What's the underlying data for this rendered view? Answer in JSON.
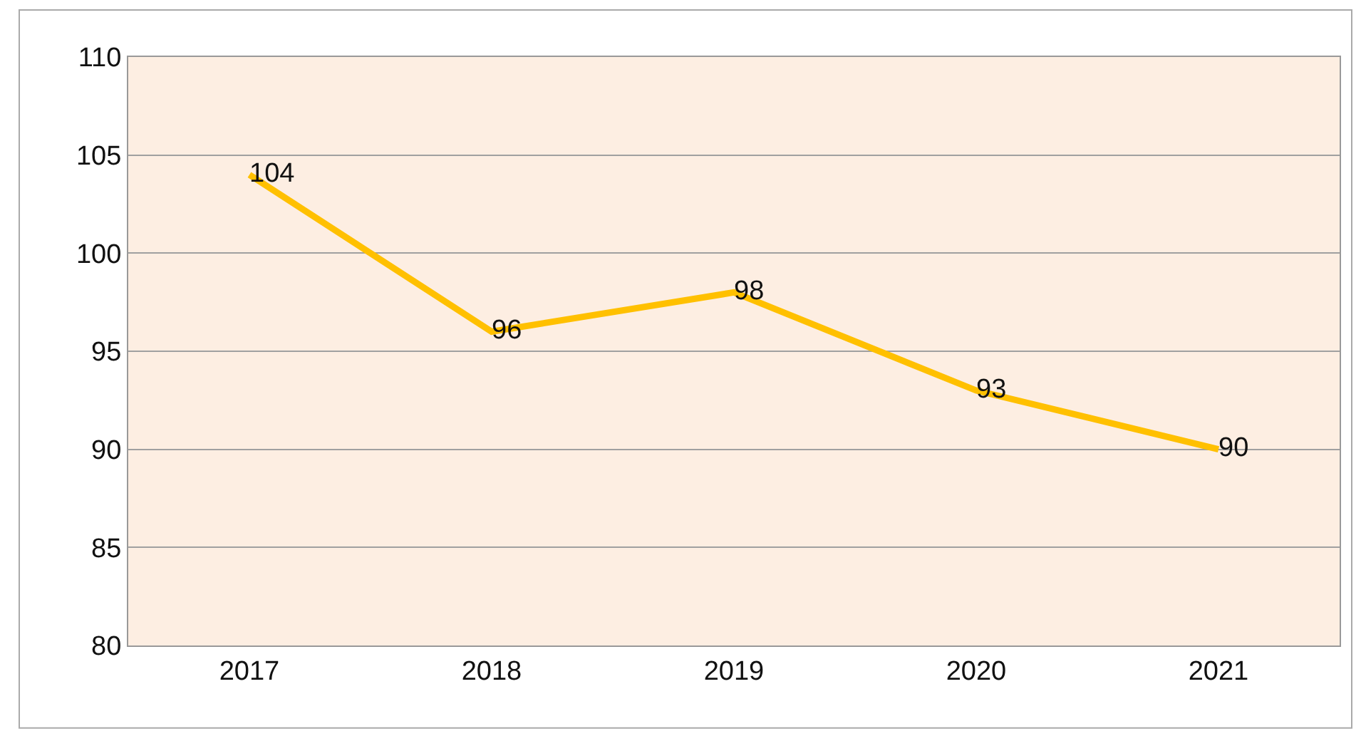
{
  "chart_data": {
    "type": "line",
    "categories": [
      "2017",
      "2018",
      "2019",
      "2020",
      "2021"
    ],
    "series": [
      {
        "color": "#ffc000",
        "values": [
          104,
          96,
          98,
          93,
          90
        ]
      }
    ],
    "ylim": [
      80,
      110
    ],
    "yticks": [
      80,
      85,
      90,
      95,
      100,
      105,
      110
    ],
    "grid": "y",
    "data_labels": true,
    "legend": false,
    "marker": "none",
    "line_style": "solid"
  }
}
